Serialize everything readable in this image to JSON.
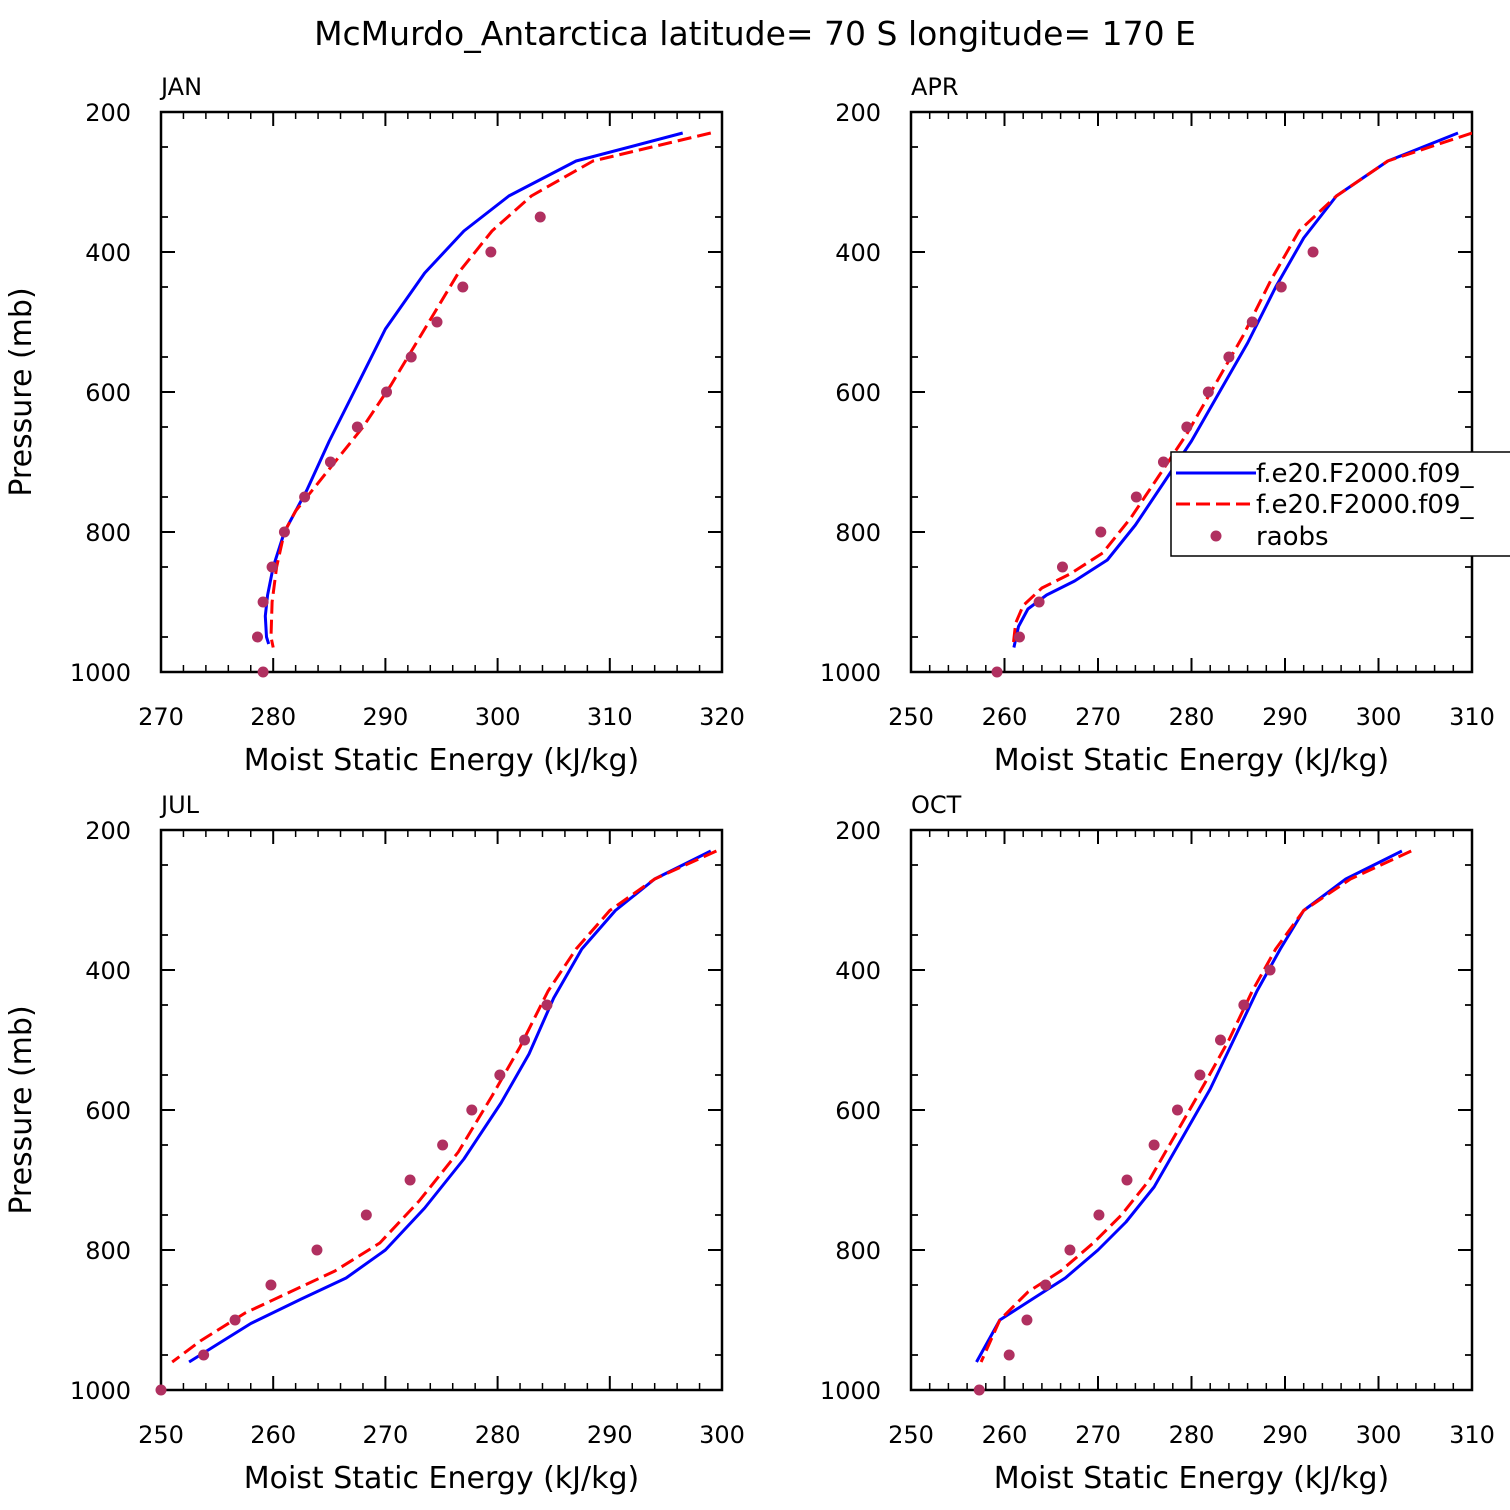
{
  "title": "McMurdo_Antarctica  latitude= 70 S longitude= 170 E",
  "colors": {
    "model1": "#0000ff",
    "model2": "#ff0000",
    "raobs": "#b03060",
    "axis": "#000000"
  },
  "legend": {
    "entries": [
      {
        "label": "f.e20.F2000.f09_",
        "style": "solid",
        "color": "#0000ff"
      },
      {
        "label": "f.e20.F2000.f09_",
        "style": "dashed",
        "color": "#ff0000"
      },
      {
        "label": "raobs",
        "style": "marker",
        "color": "#b03060"
      }
    ],
    "placement": "right, inside APR panel"
  },
  "chart_data": [
    {
      "panel": "JAN",
      "type": "line",
      "xlabel": "Moist Static Energy (kJ/kg)",
      "ylabel": "Pressure (mb)",
      "xlim": [
        270,
        320
      ],
      "ylim": [
        200,
        1000
      ],
      "y_inverted": true,
      "xticks": [
        270,
        280,
        290,
        300,
        310,
        320
      ],
      "yticks": [
        200,
        400,
        600,
        800,
        1000
      ],
      "series": [
        {
          "style": "solid",
          "color": "#0000ff",
          "x": [
            316.5,
            307,
            301,
            297,
            293.5,
            290,
            287.5,
            285,
            283,
            281,
            280,
            279.5,
            279.3,
            279.4,
            279.6
          ],
          "y": [
            230,
            270,
            320,
            370,
            430,
            510,
            590,
            670,
            740,
            800,
            850,
            890,
            920,
            950,
            960
          ]
        },
        {
          "style": "dashed",
          "color": "#ff0000",
          "x": [
            319,
            308.5,
            303,
            299.5,
            296.5,
            293.5,
            290.5,
            288,
            285.5,
            283.5,
            282,
            281,
            280.3,
            279.9,
            279.8,
            280
          ],
          "y": [
            230,
            270,
            320,
            370,
            430,
            510,
            590,
            650,
            700,
            740,
            770,
            800,
            850,
            900,
            950,
            965
          ]
        },
        {
          "style": "marker",
          "color": "#b03060",
          "x": [
            303.8,
            299.4,
            296.9,
            294.6,
            292.3,
            290.1,
            287.5,
            285.1,
            282.8,
            281.0,
            279.9,
            279.1,
            278.6,
            279.1
          ],
          "y": [
            350,
            400,
            450,
            500,
            550,
            600,
            650,
            700,
            750,
            800,
            850,
            900,
            950,
            1000
          ]
        }
      ]
    },
    {
      "panel": "APR",
      "type": "line",
      "xlabel": "Moist Static Energy (kJ/kg)",
      "ylabel": "",
      "xlim": [
        250,
        310
      ],
      "ylim": [
        200,
        1000
      ],
      "y_inverted": true,
      "xticks": [
        250,
        260,
        270,
        280,
        290,
        300,
        310
      ],
      "yticks": [
        200,
        400,
        600,
        800,
        1000
      ],
      "series": [
        {
          "style": "solid",
          "color": "#0000ff",
          "x": [
            308.5,
            301,
            295.5,
            292,
            289,
            286,
            283,
            280,
            277,
            274,
            271,
            267.5,
            264.5,
            262.5,
            261.5,
            261
          ],
          "y": [
            230,
            270,
            320,
            380,
            450,
            530,
            600,
            670,
            730,
            790,
            840,
            870,
            890,
            910,
            935,
            965
          ]
        },
        {
          "style": "dashed",
          "color": "#ff0000",
          "x": [
            310,
            301,
            295.5,
            291.5,
            288.5,
            285.5,
            282.5,
            279.5,
            276.5,
            273.5,
            270.5,
            267,
            264,
            262,
            261.2,
            260.9
          ],
          "y": [
            230,
            270,
            320,
            370,
            440,
            520,
            590,
            660,
            720,
            780,
            830,
            860,
            880,
            905,
            930,
            965
          ]
        },
        {
          "style": "marker",
          "color": "#b03060",
          "x": [
            293.0,
            289.6,
            286.5,
            284.0,
            281.8,
            279.5,
            277.0,
            274.1,
            270.3,
            266.2,
            263.7,
            261.6,
            259.2
          ],
          "y": [
            400,
            450,
            500,
            550,
            600,
            650,
            700,
            750,
            800,
            850,
            900,
            950,
            1000
          ]
        }
      ]
    },
    {
      "panel": "JUL",
      "type": "line",
      "xlabel": "Moist Static Energy (kJ/kg)",
      "ylabel": "Pressure (mb)",
      "xlim": [
        250,
        300
      ],
      "ylim": [
        200,
        1000
      ],
      "y_inverted": true,
      "xticks": [
        250,
        260,
        270,
        280,
        290,
        300
      ],
      "yticks": [
        200,
        400,
        600,
        800,
        1000
      ],
      "series": [
        {
          "style": "solid",
          "color": "#0000ff",
          "x": [
            299,
            294,
            290.5,
            287.5,
            285,
            282.8,
            280.3,
            277,
            273.5,
            270,
            266.5,
            262.5,
            258,
            255,
            252.5
          ],
          "y": [
            230,
            270,
            315,
            370,
            440,
            520,
            590,
            670,
            740,
            800,
            840,
            870,
            905,
            935,
            960
          ]
        },
        {
          "style": "dashed",
          "color": "#ff0000",
          "x": [
            299.5,
            294,
            290,
            287,
            284.5,
            282,
            279.5,
            276.5,
            273,
            269.5,
            265.5,
            261.5,
            257.5,
            253.5,
            251
          ],
          "y": [
            230,
            270,
            315,
            370,
            430,
            510,
            580,
            660,
            730,
            790,
            830,
            860,
            890,
            930,
            960
          ]
        },
        {
          "style": "marker",
          "color": "#b03060",
          "x": [
            284.4,
            282.4,
            280.2,
            277.7,
            275.1,
            272.2,
            268.3,
            263.9,
            259.8,
            256.6,
            253.8,
            250.0
          ],
          "y": [
            450,
            500,
            550,
            600,
            650,
            700,
            750,
            800,
            850,
            900,
            950,
            1000
          ]
        }
      ]
    },
    {
      "panel": "OCT",
      "type": "line",
      "xlabel": "Moist Static Energy (kJ/kg)",
      "ylabel": "",
      "xlim": [
        250,
        310
      ],
      "ylim": [
        200,
        1000
      ],
      "y_inverted": true,
      "xticks": [
        250,
        260,
        270,
        280,
        290,
        300,
        310
      ],
      "yticks": [
        200,
        400,
        600,
        800,
        1000
      ],
      "series": [
        {
          "style": "solid",
          "color": "#0000ff",
          "x": [
            302.5,
            296.5,
            292,
            289.5,
            287,
            284.5,
            282,
            279,
            276,
            273,
            270,
            266.5,
            263,
            259.5,
            257
          ],
          "y": [
            230,
            270,
            315,
            370,
            430,
            500,
            570,
            640,
            710,
            760,
            800,
            840,
            870,
            900,
            960
          ]
        },
        {
          "style": "dashed",
          "color": "#ff0000",
          "x": [
            303.5,
            297,
            292,
            289,
            286.5,
            284,
            281.5,
            278.5,
            275.5,
            272.5,
            269.5,
            266,
            262.5,
            259.5,
            257.5
          ],
          "y": [
            230,
            270,
            315,
            370,
            430,
            500,
            560,
            630,
            700,
            750,
            790,
            830,
            860,
            900,
            960
          ]
        },
        {
          "style": "marker",
          "color": "#b03060",
          "x": [
            288.4,
            285.6,
            283.1,
            280.9,
            278.5,
            276.0,
            273.1,
            270.1,
            267.0,
            264.4,
            262.4,
            260.5,
            257.3
          ],
          "y": [
            400,
            450,
            500,
            550,
            600,
            650,
            700,
            750,
            800,
            850,
            900,
            950,
            1000
          ]
        }
      ]
    }
  ]
}
